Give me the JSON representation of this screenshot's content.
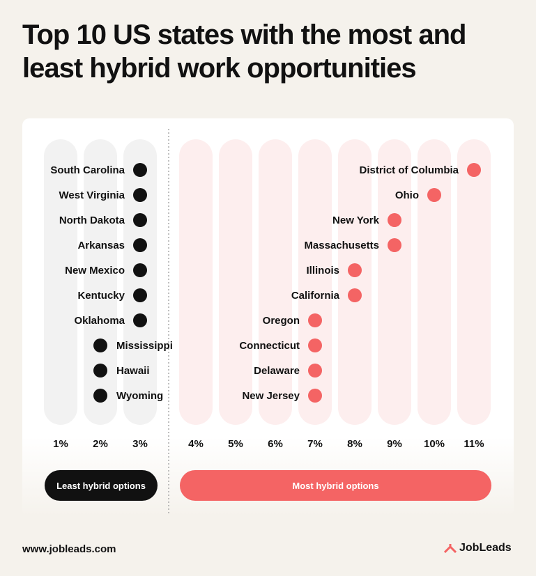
{
  "title": "Top 10 US states with the most and least hybrid work opportunities",
  "footer": {
    "url": "www.jobleads.com",
    "logo": "JobLeads"
  },
  "chart_data": {
    "type": "scatter",
    "title": "Top 10 US states with the most and least hybrid work opportunities",
    "x_ticks": [
      "1%",
      "2%",
      "3%",
      "4%",
      "5%",
      "6%",
      "7%",
      "8%",
      "9%",
      "10%",
      "11%"
    ],
    "xlim": [
      1,
      11
    ],
    "legend": [
      {
        "label": "Least hybrid options",
        "color": "#111111"
      },
      {
        "label": "Most hybrid options",
        "color": "#f46464"
      }
    ],
    "legend_placement": "bottom",
    "series": [
      {
        "name": "Least hybrid options",
        "color": "#111111",
        "points": [
          {
            "state": "South Carolina",
            "value": 3
          },
          {
            "state": "West Virginia",
            "value": 3
          },
          {
            "state": "North Dakota",
            "value": 3
          },
          {
            "state": "Arkansas",
            "value": 3
          },
          {
            "state": "New Mexico",
            "value": 3
          },
          {
            "state": "Kentucky",
            "value": 3
          },
          {
            "state": "Oklahoma",
            "value": 3
          },
          {
            "state": "Mississippi",
            "value": 2
          },
          {
            "state": "Hawaii",
            "value": 2
          },
          {
            "state": "Wyoming",
            "value": 2
          }
        ]
      },
      {
        "name": "Most hybrid options",
        "color": "#f46464",
        "points": [
          {
            "state": "District of Columbia",
            "value": 11
          },
          {
            "state": "Ohio",
            "value": 10
          },
          {
            "state": "New York",
            "value": 9
          },
          {
            "state": "Massachusetts",
            "value": 9
          },
          {
            "state": "Illinois",
            "value": 8
          },
          {
            "state": "California",
            "value": 8
          },
          {
            "state": "Oregon",
            "value": 7
          },
          {
            "state": "Connecticut",
            "value": 7
          },
          {
            "state": "Delaware",
            "value": 7
          },
          {
            "state": "New Jersey",
            "value": 7
          }
        ]
      }
    ]
  }
}
